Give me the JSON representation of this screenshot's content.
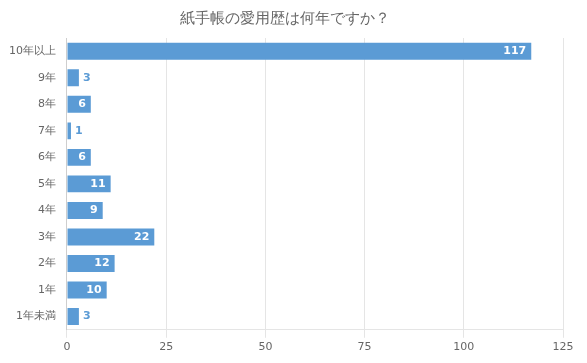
{
  "chart_data": {
    "type": "bar",
    "orientation": "horizontal",
    "title": "紙手帳の愛用歴は何年ですか？",
    "categories": [
      "10年以上",
      "9年",
      "8年",
      "7年",
      "6年",
      "5年",
      "4年",
      "3年",
      "2年",
      "1年",
      "1年未満"
    ],
    "values": [
      117,
      3,
      6,
      1,
      6,
      11,
      9,
      22,
      12,
      10,
      3
    ],
    "color": "#5b9bd5",
    "xlim": [
      0,
      125
    ],
    "xticks": [
      0,
      25,
      50,
      75,
      100,
      125
    ],
    "grid": true,
    "data_labels": true
  }
}
